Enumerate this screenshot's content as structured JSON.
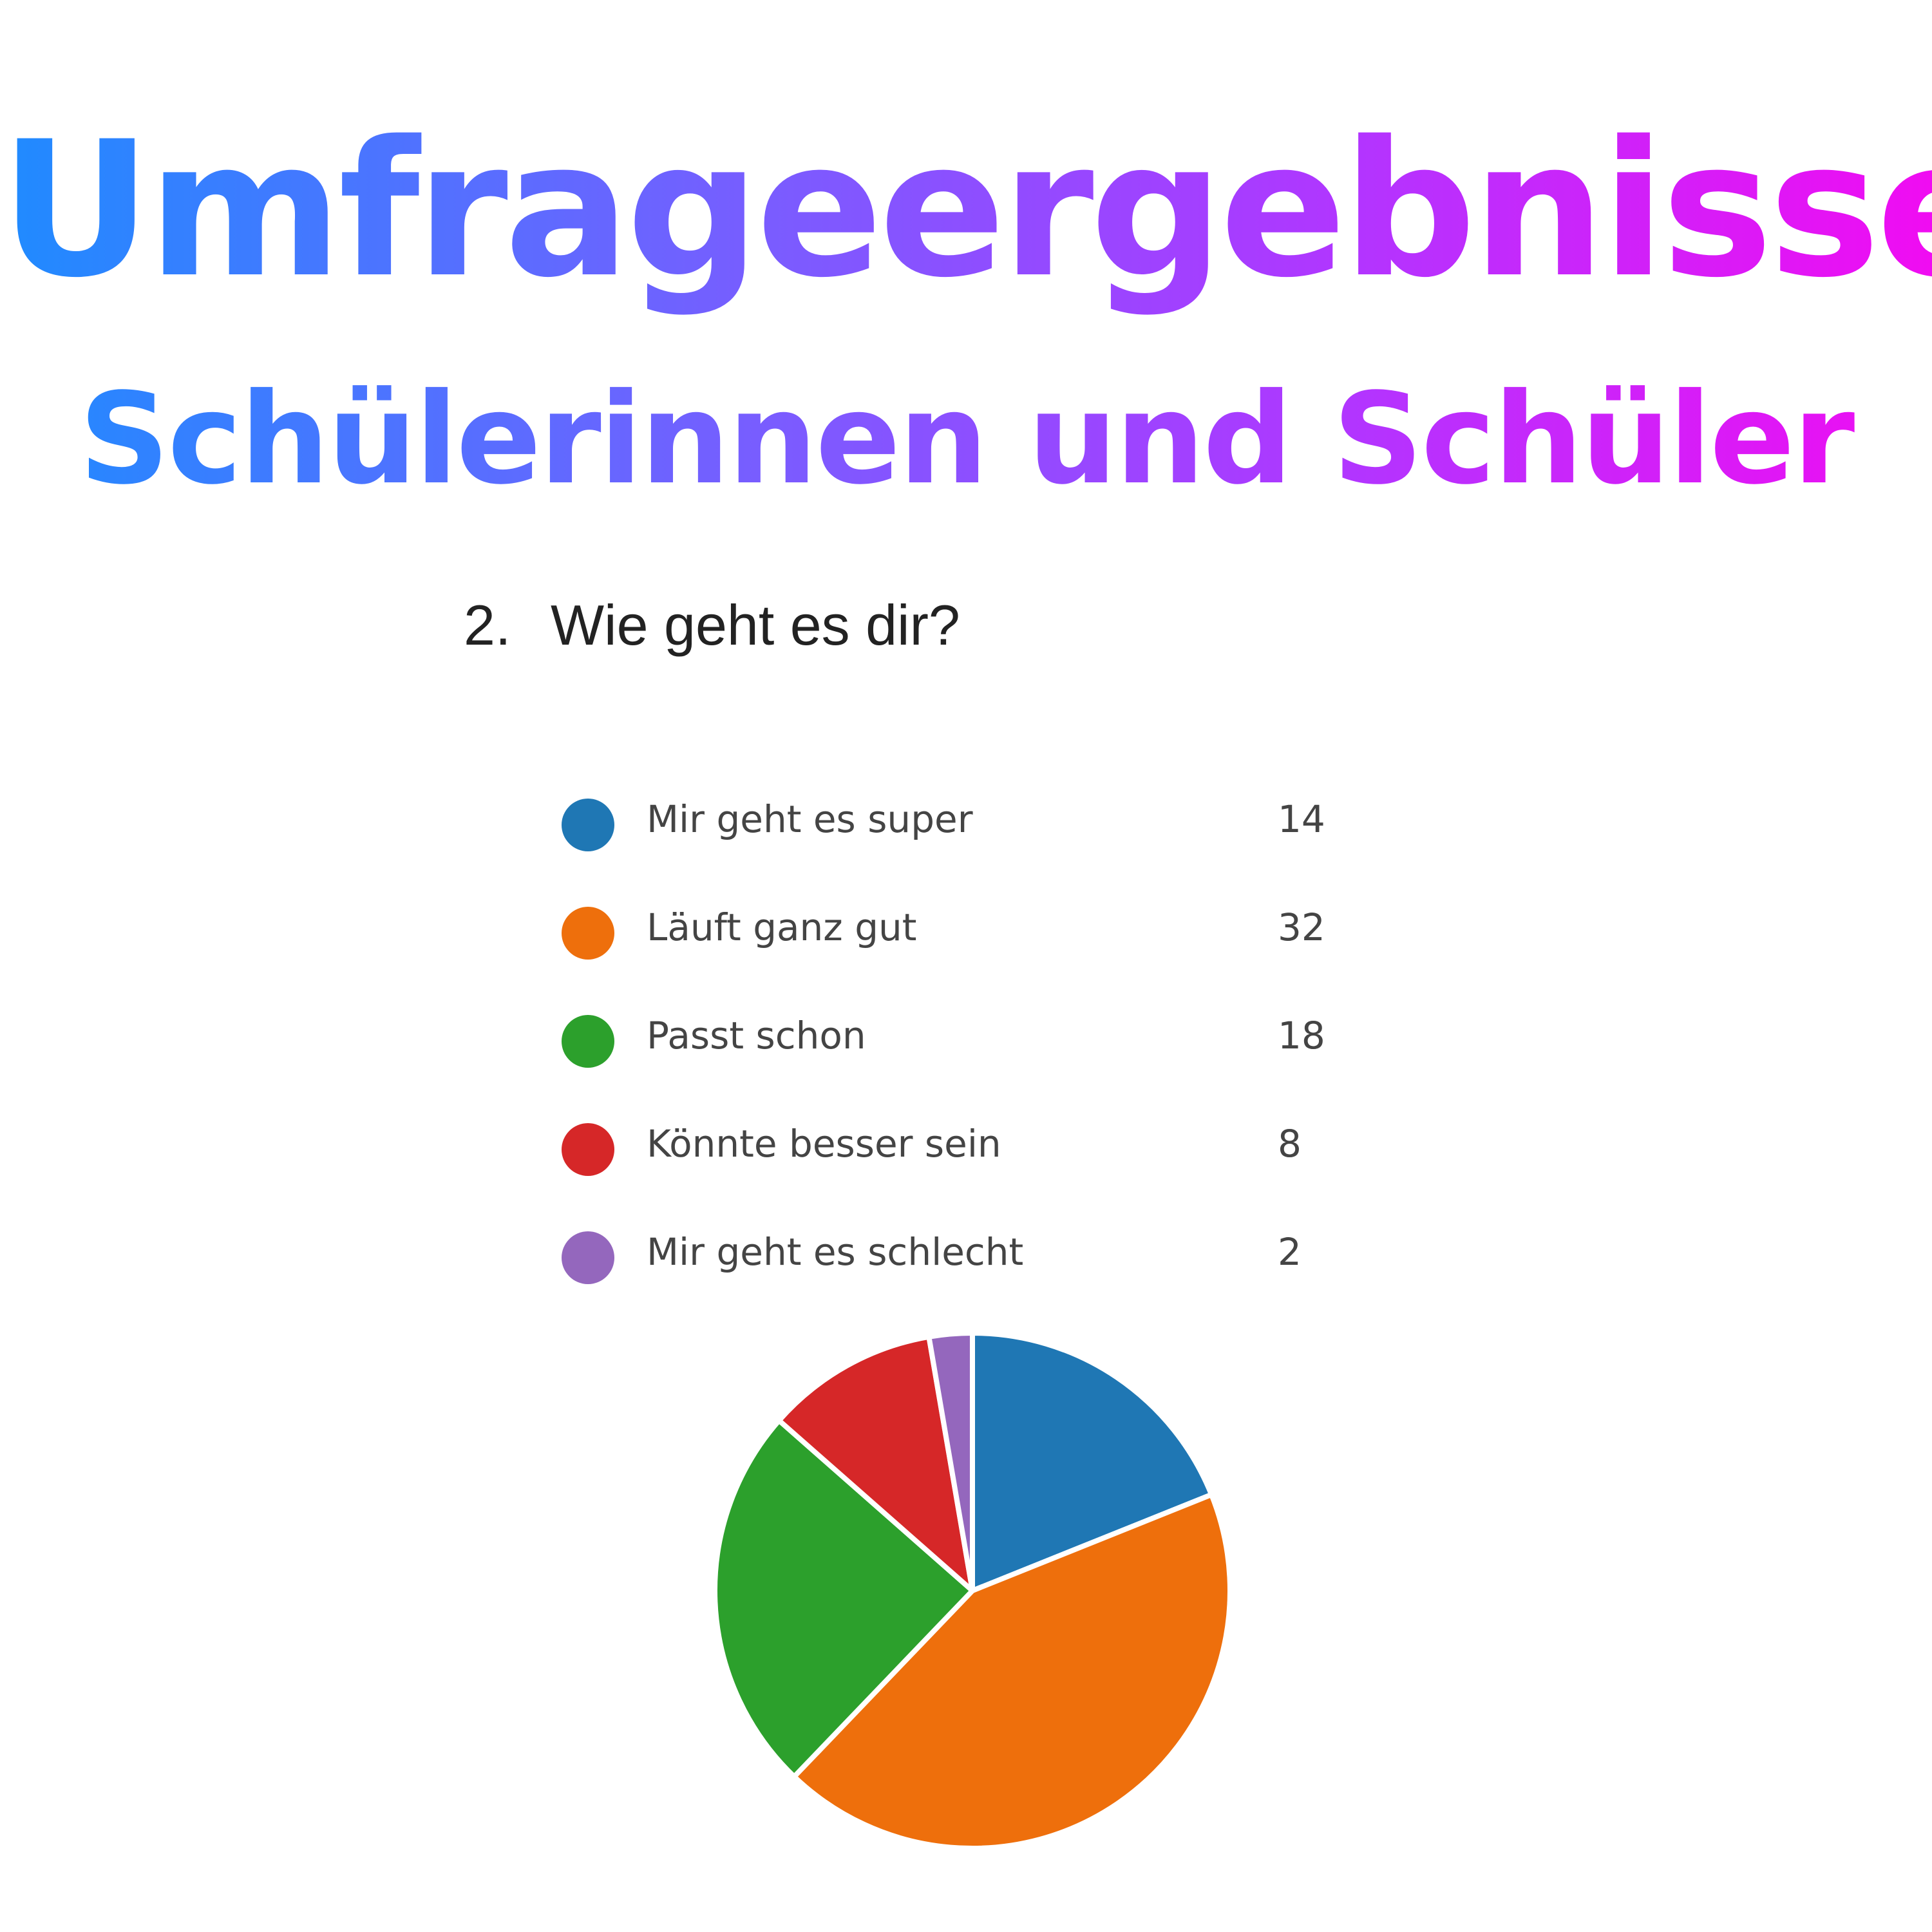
{
  "header": {
    "title": "Umfrageergebnisse",
    "subtitle": "Schülerinnen und Schüler"
  },
  "question": {
    "number": "2.",
    "text": "Wie geht es dir?"
  },
  "chart_data": {
    "type": "pie",
    "title": "",
    "legend_position": "top",
    "categories": [
      "Mir geht es super",
      "Läuft ganz gut",
      "Passt schon",
      "Könnte besser sein",
      "Mir geht es schlecht"
    ],
    "values": [
      14,
      32,
      18,
      8,
      2
    ],
    "colors": [
      "#1f77b4",
      "#ee6f0c",
      "#2ca02c",
      "#d62728",
      "#9467bd"
    ]
  },
  "legend": {
    "items": [
      {
        "label": "Mir geht es super",
        "value": "14",
        "color": "#1f77b4"
      },
      {
        "label": "Läuft ganz gut",
        "value": "32",
        "color": "#ee6f0c"
      },
      {
        "label": "Passt schon",
        "value": "18",
        "color": "#2ca02c"
      },
      {
        "label": "Könnte besser sein",
        "value": "8",
        "color": "#d62728"
      },
      {
        "label": "Mir geht es schlecht",
        "value": "2",
        "color": "#9467bd"
      }
    ]
  }
}
